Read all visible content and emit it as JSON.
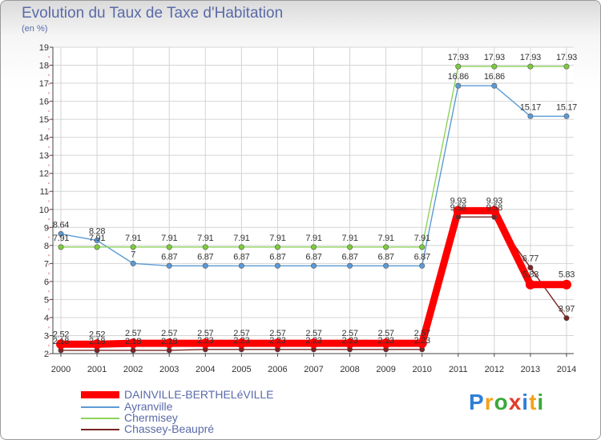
{
  "colors": {
    "series": [
      "#ff0000",
      "#5b9bd5",
      "#8fd35a",
      "#7a2424"
    ],
    "markers": [
      "#ff0000",
      "#5b9bd5",
      "#7ccc3c",
      "#7a2424"
    ],
    "grid": "#d4d4d4",
    "axis": "#444444",
    "text": "#5a6aa8"
  },
  "brand": {
    "letters": [
      "P",
      "r",
      "o",
      "x",
      "i",
      "t",
      "i"
    ],
    "colors": [
      "#2e7fd8",
      "#f4a21d",
      "#3aa83a",
      "#e33b2b",
      "#2e7fd8",
      "#f4a21d",
      "#3aa83a"
    ]
  },
  "chart_data": {
    "type": "line",
    "title": "Evolution du Taux de Taxe d'Habitation",
    "subtitle": "(en %)",
    "xlabel": "",
    "ylabel": "",
    "ylim": [
      2,
      19
    ],
    "yticks": [
      "2",
      "3",
      "4",
      "5",
      "6",
      "7",
      "8",
      "9",
      "10",
      "11",
      "12",
      "13",
      "14",
      "15",
      "16",
      "17",
      "18",
      "19"
    ],
    "categories": [
      "2000",
      "2001",
      "2002",
      "2003",
      "2004",
      "2005",
      "2006",
      "2007",
      "2008",
      "2009",
      "2010",
      "2011",
      "2012",
      "2013",
      "2014"
    ],
    "grid": true,
    "legend_position": "bottom-left",
    "series": [
      {
        "name": "DAINVILLE-BERTHELéVILLE",
        "values": [
          2.52,
          2.52,
          2.57,
          2.57,
          2.57,
          2.57,
          2.57,
          2.57,
          2.57,
          2.57,
          2.57,
          9.93,
          9.93,
          5.83,
          5.83
        ],
        "labels": [
          "2.52",
          "2.52",
          "2.57",
          "2.57",
          "2.57",
          "2.57",
          "2.57",
          "2.57",
          "2.57",
          "2.57",
          "2.57",
          "9.93",
          "9.93",
          "5.83",
          "5.83"
        ]
      },
      {
        "name": "Ayranville",
        "values": [
          8.64,
          8.28,
          7,
          6.87,
          6.87,
          6.87,
          6.87,
          6.87,
          6.87,
          6.87,
          6.87,
          16.86,
          16.86,
          15.17,
          15.17
        ],
        "labels": [
          "8.64",
          "8.28",
          "7",
          "6.87",
          "6.87",
          "6.87",
          "6.87",
          "6.87",
          "6.87",
          "6.87",
          "6.87",
          "16.86",
          "16.86",
          "15.17",
          "15.17"
        ]
      },
      {
        "name": "Chermisey",
        "values": [
          7.91,
          7.91,
          7.91,
          7.91,
          7.91,
          7.91,
          7.91,
          7.91,
          7.91,
          7.91,
          7.91,
          17.93,
          17.93,
          17.93,
          17.93
        ],
        "labels": [
          "7.91",
          "7.91",
          "7.91",
          "7.91",
          "7.91",
          "7.91",
          "7.91",
          "7.91",
          "7.91",
          "7.91",
          "7.91",
          "17.93",
          "17.93",
          "17.93",
          "17.93"
        ]
      },
      {
        "name": "Chassey-Beaupré",
        "values": [
          2.18,
          2.18,
          2.18,
          2.18,
          2.23,
          2.23,
          2.23,
          2.23,
          2.23,
          2.23,
          2.23,
          9.58,
          9.58,
          6.77,
          3.97
        ],
        "labels": [
          "2.18",
          "2.18",
          "2.18",
          "2.18",
          "2.23",
          "2.23",
          "2.23",
          "2.23",
          "2.23",
          "2.23",
          "2.23",
          "9.58",
          "9.58",
          "6.77",
          "3.97"
        ]
      }
    ]
  }
}
